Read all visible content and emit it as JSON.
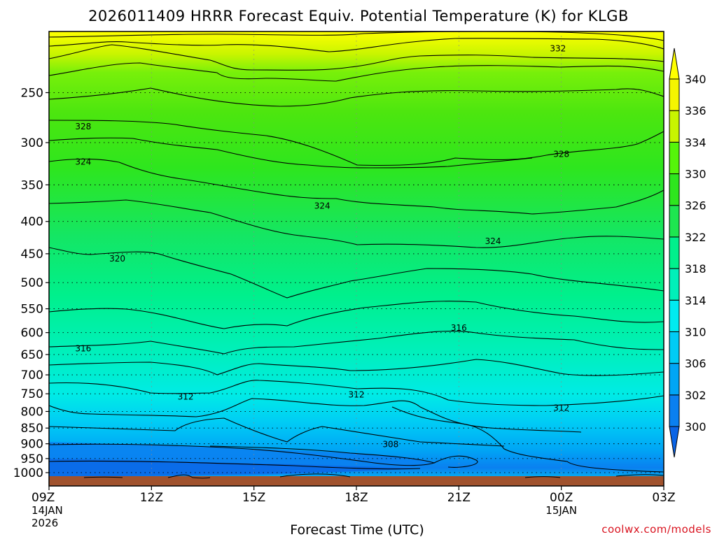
{
  "chart_data": {
    "type": "heatmap",
    "title": "2026011409 HRRR Forecast Equiv. Potential Temperature (K) for KLGB",
    "xlabel": "Forecast Time (UTC)",
    "ylabel": "",
    "x_ticks": [
      {
        "hour": 0,
        "label": "09Z",
        "sub1": "14JAN",
        "sub2": "2026"
      },
      {
        "hour": 3,
        "label": "12Z",
        "sub1": "",
        "sub2": ""
      },
      {
        "hour": 6,
        "label": "15Z",
        "sub1": "",
        "sub2": ""
      },
      {
        "hour": 9,
        "label": "18Z",
        "sub1": "",
        "sub2": ""
      },
      {
        "hour": 12,
        "label": "21Z",
        "sub1": "",
        "sub2": ""
      },
      {
        "hour": 15,
        "label": "00Z",
        "sub1": "15JAN",
        "sub2": ""
      },
      {
        "hour": 18,
        "label": "03Z",
        "sub1": "",
        "sub2": ""
      }
    ],
    "xlim": [
      0,
      18
    ],
    "pressure_levels": [
      250,
      300,
      350,
      400,
      450,
      500,
      550,
      600,
      650,
      700,
      750,
      800,
      850,
      900,
      950,
      1000
    ],
    "ylim_hpa": [
      200,
      1013
    ],
    "colorbar": {
      "levels": [
        300,
        302,
        306,
        310,
        314,
        318,
        322,
        326,
        330,
        334,
        336,
        340
      ],
      "labels": [
        "300",
        "302",
        "306",
        "310",
        "314",
        "318",
        "322",
        "326",
        "330",
        "334",
        "336",
        "340"
      ],
      "colors": [
        "#0a64e6",
        "#0a80f0",
        "#00a6f5",
        "#00ccf5",
        "#00ebf0",
        "#00f0b9",
        "#00f08c",
        "#1ee650",
        "#2ee61e",
        "#55f50a",
        "#c8f500",
        "#f5f500",
        "#ffff00"
      ]
    },
    "contour_labels": [
      {
        "text": "332",
        "hour": 14.9,
        "hpa": 213
      },
      {
        "text": "328",
        "hour": 1.0,
        "hpa": 283
      },
      {
        "text": "328",
        "hour": 15.0,
        "hpa": 313
      },
      {
        "text": "324",
        "hour": 1.0,
        "hpa": 322
      },
      {
        "text": "324",
        "hour": 8.0,
        "hpa": 378
      },
      {
        "text": "324",
        "hour": 13.0,
        "hpa": 430
      },
      {
        "text": "320",
        "hour": 2.0,
        "hpa": 458
      },
      {
        "text": "316",
        "hour": 12.0,
        "hpa": 590
      },
      {
        "text": "316",
        "hour": 1.0,
        "hpa": 636
      },
      {
        "text": "312",
        "hour": 4.0,
        "hpa": 758
      },
      {
        "text": "312",
        "hour": 9.0,
        "hpa": 753
      },
      {
        "text": "312",
        "hour": 15.0,
        "hpa": 790
      },
      {
        "text": "308",
        "hour": 10.0,
        "hpa": 902
      }
    ],
    "ground_color": "#a0522d"
  },
  "footer": {
    "credit": "coolwx.com/models"
  }
}
